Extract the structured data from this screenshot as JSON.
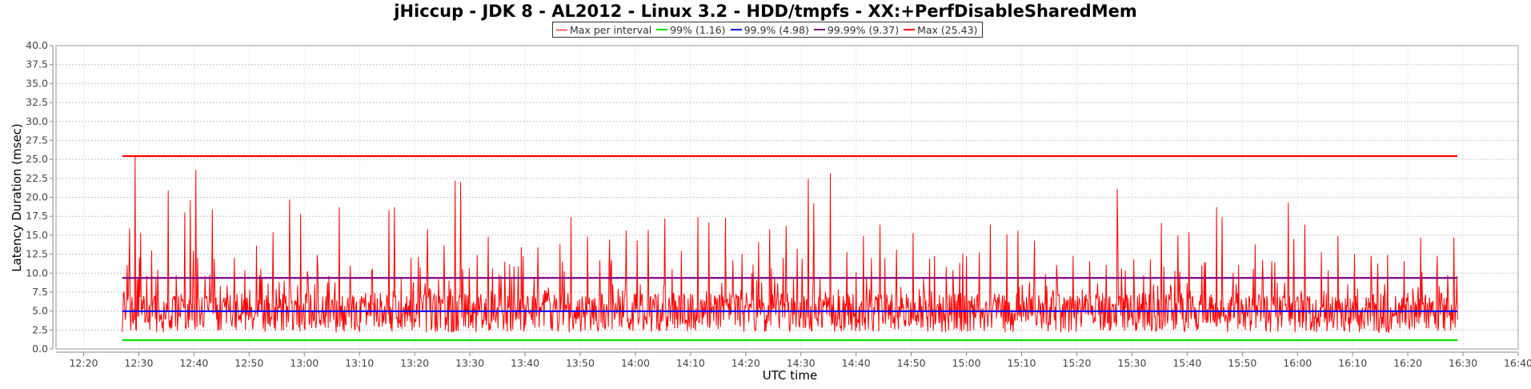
{
  "chart_data": {
    "type": "line",
    "title": "jHiccup - JDK 8 - AL2012 - Linux 3.2 - HDD/tmpfs - XX:+PerfDisableSharedMem",
    "xlabel": "UTC time",
    "ylabel": "Latency Duration (msec)",
    "ylim": [
      0,
      40
    ],
    "yticks": [
      "0.0",
      "2.5",
      "5.0",
      "7.5",
      "10.0",
      "12.5",
      "15.0",
      "17.5",
      "20.0",
      "22.5",
      "25.0",
      "27.5",
      "30.0",
      "32.5",
      "35.0",
      "37.5",
      "40.0"
    ],
    "xlim_minutes": [
      735,
      1000
    ],
    "xticks": [
      "12:20",
      "12:30",
      "12:40",
      "12:50",
      "13:00",
      "13:10",
      "13:20",
      "13:30",
      "13:40",
      "13:50",
      "14:00",
      "14:10",
      "14:20",
      "14:30",
      "14:40",
      "14:50",
      "15:00",
      "15:10",
      "15:20",
      "15:30",
      "15:40",
      "15:50",
      "16:00",
      "16:10",
      "16:20",
      "16:30",
      "16:40"
    ],
    "grid": true,
    "legend_position": "top-center",
    "series": [
      {
        "name": "Max per interval",
        "color": "#ff0000",
        "x_range": [
          "12:27",
          "16:29"
        ],
        "baseline": 5.5,
        "peaks": [
          {
            "t": "12:27",
            "v": 7.5
          },
          {
            "t": "12:28",
            "v": 15.9
          },
          {
            "t": "12:29",
            "v": 25.4
          },
          {
            "t": "12:30",
            "v": 15.3
          },
          {
            "t": "12:32",
            "v": 13.0
          },
          {
            "t": "12:35",
            "v": 20.9
          },
          {
            "t": "12:38",
            "v": 18.0
          },
          {
            "t": "12:39",
            "v": 19.6
          },
          {
            "t": "12:40",
            "v": 23.6
          },
          {
            "t": "12:43",
            "v": 18.4
          },
          {
            "t": "12:47",
            "v": 12.0
          },
          {
            "t": "12:51",
            "v": 13.6
          },
          {
            "t": "12:54",
            "v": 15.4
          },
          {
            "t": "12:57",
            "v": 19.7
          },
          {
            "t": "12:59",
            "v": 17.8
          },
          {
            "t": "13:02",
            "v": 12.4
          },
          {
            "t": "13:06",
            "v": 18.7
          },
          {
            "t": "13:08",
            "v": 11.0
          },
          {
            "t": "13:12",
            "v": 10.5
          },
          {
            "t": "13:15",
            "v": 18.3
          },
          {
            "t": "13:16",
            "v": 18.7
          },
          {
            "t": "13:19",
            "v": 12.0
          },
          {
            "t": "13:22",
            "v": 15.8
          },
          {
            "t": "13:25",
            "v": 13.7
          },
          {
            "t": "13:27",
            "v": 22.2
          },
          {
            "t": "13:28",
            "v": 22.0
          },
          {
            "t": "13:31",
            "v": 12.4
          },
          {
            "t": "13:33",
            "v": 14.8
          },
          {
            "t": "13:36",
            "v": 11.5
          },
          {
            "t": "13:39",
            "v": 13.4
          },
          {
            "t": "13:42",
            "v": 13.4
          },
          {
            "t": "13:46",
            "v": 13.8
          },
          {
            "t": "13:48",
            "v": 17.4
          },
          {
            "t": "13:51",
            "v": 14.8
          },
          {
            "t": "13:55",
            "v": 14.4
          },
          {
            "t": "13:58",
            "v": 15.6
          },
          {
            "t": "14:00",
            "v": 14.3
          },
          {
            "t": "14:02",
            "v": 15.7
          },
          {
            "t": "14:05",
            "v": 17.2
          },
          {
            "t": "14:08",
            "v": 12.9
          },
          {
            "t": "14:11",
            "v": 17.4
          },
          {
            "t": "14:13",
            "v": 16.7
          },
          {
            "t": "14:16",
            "v": 17.3
          },
          {
            "t": "14:19",
            "v": 12.5
          },
          {
            "t": "14:22",
            "v": 14.1
          },
          {
            "t": "14:24",
            "v": 15.8
          },
          {
            "t": "14:27",
            "v": 16.2
          },
          {
            "t": "14:29",
            "v": 13.2
          },
          {
            "t": "14:31",
            "v": 22.4
          },
          {
            "t": "14:32",
            "v": 19.2
          },
          {
            "t": "14:35",
            "v": 23.2
          },
          {
            "t": "14:38",
            "v": 12.8
          },
          {
            "t": "14:41",
            "v": 14.9
          },
          {
            "t": "14:44",
            "v": 16.4
          },
          {
            "t": "14:47",
            "v": 13.1
          },
          {
            "t": "14:50",
            "v": 15.3
          },
          {
            "t": "14:53",
            "v": 11.9
          },
          {
            "t": "14:56",
            "v": 10.8
          },
          {
            "t": "14:59",
            "v": 12.6
          },
          {
            "t": "15:02",
            "v": 12.7
          },
          {
            "t": "15:04",
            "v": 16.4
          },
          {
            "t": "15:07",
            "v": 15.1
          },
          {
            "t": "15:09",
            "v": 15.6
          },
          {
            "t": "15:12",
            "v": 14.3
          },
          {
            "t": "15:16",
            "v": 11.1
          },
          {
            "t": "15:19",
            "v": 12.3
          },
          {
            "t": "15:22",
            "v": 11.6
          },
          {
            "t": "15:25",
            "v": 11.1
          },
          {
            "t": "15:27",
            "v": 21.1
          },
          {
            "t": "15:30",
            "v": 11.8
          },
          {
            "t": "15:33",
            "v": 11.8
          },
          {
            "t": "15:35",
            "v": 16.6
          },
          {
            "t": "15:38",
            "v": 15.0
          },
          {
            "t": "15:40",
            "v": 15.4
          },
          {
            "t": "15:43",
            "v": 11.4
          },
          {
            "t": "15:45",
            "v": 18.7
          },
          {
            "t": "15:46",
            "v": 17.4
          },
          {
            "t": "15:49",
            "v": 11.1
          },
          {
            "t": "15:52",
            "v": 13.8
          },
          {
            "t": "15:55",
            "v": 11.6
          },
          {
            "t": "15:58",
            "v": 19.3
          },
          {
            "t": "15:59",
            "v": 14.5
          },
          {
            "t": "16:01",
            "v": 16.4
          },
          {
            "t": "16:04",
            "v": 12.8
          },
          {
            "t": "16:07",
            "v": 14.9
          },
          {
            "t": "16:10",
            "v": 12.5
          },
          {
            "t": "16:13",
            "v": 12.3
          },
          {
            "t": "16:16",
            "v": 12.4
          },
          {
            "t": "16:19",
            "v": 11.6
          },
          {
            "t": "16:22",
            "v": 14.7
          },
          {
            "t": "16:25",
            "v": 12.3
          },
          {
            "t": "16:28",
            "v": 14.7
          }
        ]
      },
      {
        "name": "99% (1.16)",
        "color": "#00e000",
        "value": 1.16,
        "x_range": [
          "12:27",
          "16:29"
        ]
      },
      {
        "name": "99.9% (4.98)",
        "color": "#0000ff",
        "value": 4.98,
        "x_range": [
          "12:27",
          "16:29"
        ]
      },
      {
        "name": "99.99% (9.37)",
        "color": "#800080",
        "value": 9.37,
        "x_range": [
          "12:27",
          "16:29"
        ]
      },
      {
        "name": "Max (25.43)",
        "color": "#ff0000",
        "value": 25.43,
        "x_range": [
          "12:27",
          "16:29"
        ]
      }
    ]
  }
}
